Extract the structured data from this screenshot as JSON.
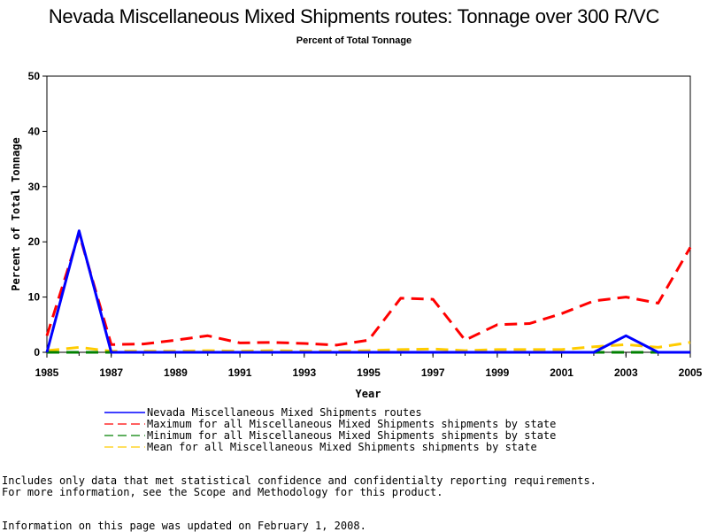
{
  "chart_data": {
    "type": "line",
    "title": "Nevada Miscellaneous Mixed Shipments routes: Tonnage over 300 R/VC",
    "subtitle": "Percent of Total Tonnage",
    "xlabel": "Year",
    "ylabel": "Percent of Total Tonnage",
    "xlim": [
      1985,
      2005
    ],
    "ylim": [
      0,
      50
    ],
    "x_ticks": [
      1985,
      1987,
      1989,
      1991,
      1993,
      1995,
      1997,
      1999,
      2001,
      2003,
      2005
    ],
    "y_ticks": [
      0,
      10,
      20,
      30,
      40,
      50
    ],
    "x": [
      1985,
      1986,
      1987,
      1988,
      1989,
      1990,
      1991,
      1992,
      1993,
      1994,
      1995,
      1996,
      1997,
      1998,
      1999,
      2000,
      2001,
      2002,
      2003,
      2004,
      2005
    ],
    "series": [
      {
        "name": "Nevada Miscellaneous Mixed Shipments routes",
        "color": "#0000ff",
        "style": "solid",
        "values": [
          0,
          22,
          0,
          0,
          0,
          0,
          0,
          0,
          0,
          0,
          0,
          0,
          0,
          0,
          0,
          0,
          0,
          0,
          3,
          0,
          0
        ]
      },
      {
        "name": "Maximum for all Miscellaneous Mixed Shipments shipments by state",
        "color": "#ff0000",
        "style": "dashed",
        "values": [
          3,
          21.5,
          1.4,
          1.5,
          2.2,
          3.0,
          1.7,
          1.8,
          1.6,
          1.3,
          2.2,
          9.8,
          9.6,
          2.2,
          5.0,
          5.2,
          7.0,
          9.3,
          10.0,
          8.9,
          19.0
        ]
      },
      {
        "name": "Minimum for all Miscellaneous Mixed Shipments shipments by state",
        "color": "#008000",
        "style": "dashed",
        "values": [
          0,
          0,
          0,
          0,
          0,
          0,
          0,
          0,
          0,
          0,
          0,
          0,
          0,
          0,
          0,
          0,
          0,
          0,
          0,
          0,
          0
        ]
      },
      {
        "name": "Mean for all Miscellaneous Mixed Shipments shipments by state",
        "color": "#ffcc00",
        "style": "dashed",
        "values": [
          0.3,
          0.9,
          0.2,
          0.2,
          0.2,
          0.3,
          0.2,
          0.3,
          0.2,
          0.2,
          0.3,
          0.5,
          0.6,
          0.3,
          0.5,
          0.5,
          0.5,
          1.0,
          1.4,
          0.9,
          1.8
        ]
      }
    ],
    "grid": false,
    "legend_position": "bottom"
  },
  "footnotes": [
    "Includes only data that met statistical confidence and confidentialty reporting requirements.",
    "For more information, see the Scope and Methodology for this product.",
    "Information on this page was updated on February 1, 2008."
  ]
}
